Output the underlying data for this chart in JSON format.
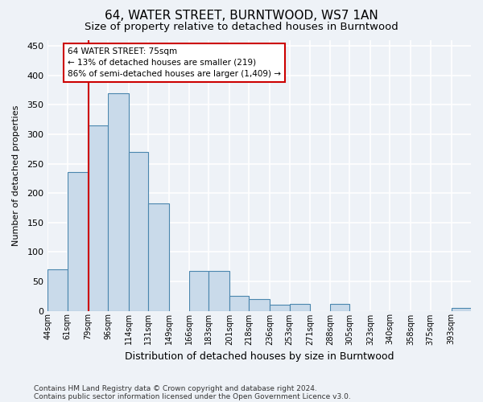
{
  "title": "64, WATER STREET, BURNTWOOD, WS7 1AN",
  "subtitle": "Size of property relative to detached houses in Burntwood",
  "xlabel": "Distribution of detached houses by size in Burntwood",
  "ylabel": "Number of detached properties",
  "footnote1": "Contains HM Land Registry data © Crown copyright and database right 2024.",
  "footnote2": "Contains public sector information licensed under the Open Government Licence v3.0.",
  "annotation_title": "64 WATER STREET: 75sqm",
  "annotation_line1": "← 13% of detached houses are smaller (219)",
  "annotation_line2": "86% of semi-detached houses are larger (1,409) →",
  "bar_left_edges": [
    44,
    61,
    79,
    96,
    114,
    131,
    149,
    166,
    183,
    201,
    218,
    236,
    253,
    271,
    288,
    305,
    323,
    340,
    358,
    375,
    393
  ],
  "bar_heights": [
    70,
    236,
    315,
    370,
    270,
    183,
    0,
    68,
    68,
    25,
    20,
    10,
    12,
    0,
    12,
    0,
    0,
    0,
    0,
    0,
    5
  ],
  "bar_color": "#c9daea",
  "bar_edge_color": "#4a86ae",
  "red_line_x": 79,
  "annotation_box_color": "#ffffff",
  "annotation_box_edge": "#cc0000",
  "ylim": [
    0,
    460
  ],
  "xlim": [
    44,
    410
  ],
  "yticks": [
    0,
    50,
    100,
    150,
    200,
    250,
    300,
    350,
    400,
    450
  ],
  "background_color": "#eef2f7",
  "grid_color": "#ffffff",
  "title_fontsize": 11,
  "subtitle_fontsize": 9.5
}
